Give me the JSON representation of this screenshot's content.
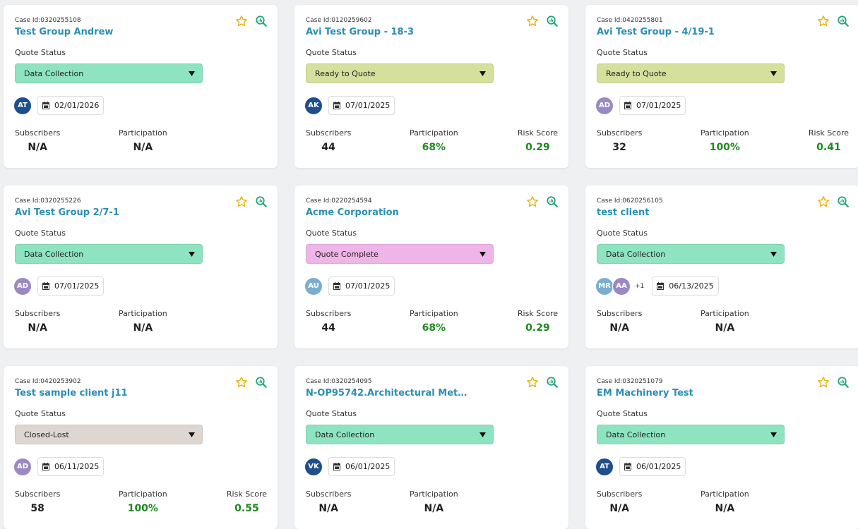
{
  "cards": [
    {
      "case_id": "Case Id:0320255108",
      "title": "Test Group Andrew",
      "status_label": "Quote Status",
      "status": "Data Collection",
      "status_color": "#8ee3c0",
      "avatars": [
        {
          "initials": "AT",
          "color": "#1f4e8c"
        }
      ],
      "date": "02/01/2026",
      "metrics": [
        {
          "label": "Subscribers",
          "value": "N/A",
          "color": "#222222"
        },
        {
          "label": "Participation",
          "value": "N/A",
          "color": "#222222"
        }
      ]
    },
    {
      "case_id": "Case Id:0120259602",
      "title": "Avi Test Group - 18-3",
      "status_label": "Quote Status",
      "status": "Ready to Quote",
      "status_color": "#d4e09b",
      "avatars": [
        {
          "initials": "AK",
          "color": "#1f4e8c"
        }
      ],
      "date": "07/01/2025",
      "metrics": [
        {
          "label": "Subscribers",
          "value": "44",
          "color": "#222222"
        },
        {
          "label": "Participation",
          "value": "68%",
          "color": "#1e8a1e"
        },
        {
          "label": "Risk Score",
          "value": "0.29",
          "color": "#1e8a1e"
        }
      ]
    },
    {
      "case_id": "Case Id:0420255801",
      "title": "Avi Test Group - 4/19-1",
      "status_label": "Quote Status",
      "status": "Ready to Quote",
      "status_color": "#d4e09b",
      "avatars": [
        {
          "initials": "AD",
          "color": "#9b89c4"
        }
      ],
      "date": "07/01/2025",
      "metrics": [
        {
          "label": "Subscribers",
          "value": "32",
          "color": "#222222"
        },
        {
          "label": "Participation",
          "value": "100%",
          "color": "#1e8a1e"
        },
        {
          "label": "Risk Score",
          "value": "0.41",
          "color": "#1e8a1e"
        }
      ]
    },
    {
      "case_id": "Case Id:0320255226",
      "title": "Avi Test Group 2/7-1",
      "status_label": "Quote Status",
      "status": "Data Collection",
      "status_color": "#8ee3c0",
      "avatars": [
        {
          "initials": "AD",
          "color": "#9b89c4"
        }
      ],
      "date": "07/01/2025",
      "metrics": [
        {
          "label": "Subscribers",
          "value": "N/A",
          "color": "#222222"
        },
        {
          "label": "Participation",
          "value": "N/A",
          "color": "#222222"
        }
      ]
    },
    {
      "case_id": "Case Id:0220254594",
      "title": "Acme Corporation",
      "status_label": "Quote Status",
      "status": "Quote Complete",
      "status_color": "#f0b5e8",
      "avatars": [
        {
          "initials": "AU",
          "color": "#7aaed0"
        }
      ],
      "date": "07/01/2025",
      "metrics": [
        {
          "label": "Subscribers",
          "value": "44",
          "color": "#222222"
        },
        {
          "label": "Participation",
          "value": "68%",
          "color": "#1e8a1e"
        },
        {
          "label": "Risk Score",
          "value": "0.29",
          "color": "#1e8a1e"
        }
      ]
    },
    {
      "case_id": "Case Id:0620256105",
      "title": "test client",
      "status_label": "Quote Status",
      "status": "Data Collection",
      "status_color": "#8ee3c0",
      "avatars": [
        {
          "initials": "MR",
          "color": "#7aaed0"
        },
        {
          "initials": "AA",
          "color": "#9b89c4"
        }
      ],
      "extra": "+1",
      "date": "06/13/2025",
      "metrics": [
        {
          "label": "Subscribers",
          "value": "N/A",
          "color": "#222222"
        },
        {
          "label": "Participation",
          "value": "N/A",
          "color": "#222222"
        }
      ]
    },
    {
      "case_id": "Case Id:0420253902",
      "title": "Test sample client j11",
      "status_label": "Quote Status",
      "status": "Closed-Lost",
      "status_color": "#ddd6d1",
      "avatars": [
        {
          "initials": "AD",
          "color": "#9b89c4"
        }
      ],
      "date": "06/11/2025",
      "metrics": [
        {
          "label": "Subscribers",
          "value": "58",
          "color": "#222222"
        },
        {
          "label": "Participation",
          "value": "100%",
          "color": "#1e8a1e"
        },
        {
          "label": "Risk Score",
          "value": "0.55",
          "color": "#1e8a1e"
        }
      ]
    },
    {
      "case_id": "Case Id:0320254095",
      "title": "N-OP95742.Architectural Met…",
      "status_label": "Quote Status",
      "status": "Data Collection",
      "status_color": "#8ee3c0",
      "avatars": [
        {
          "initials": "VK",
          "color": "#1f4e8c"
        }
      ],
      "date": "06/01/2025",
      "metrics": [
        {
          "label": "Subscribers",
          "value": "N/A",
          "color": "#222222"
        },
        {
          "label": "Participation",
          "value": "N/A",
          "color": "#222222"
        }
      ]
    },
    {
      "case_id": "Case Id:0320251079",
      "title": "EM Machinery Test",
      "status_label": "Quote Status",
      "status": "Data Collection",
      "status_color": "#8ee3c0",
      "avatars": [
        {
          "initials": "AT",
          "color": "#1f4e8c"
        }
      ],
      "date": "06/01/2025",
      "metrics": [
        {
          "label": "Subscribers",
          "value": "N/A",
          "color": "#222222"
        },
        {
          "label": "Participation",
          "value": "N/A",
          "color": "#222222"
        }
      ]
    }
  ]
}
